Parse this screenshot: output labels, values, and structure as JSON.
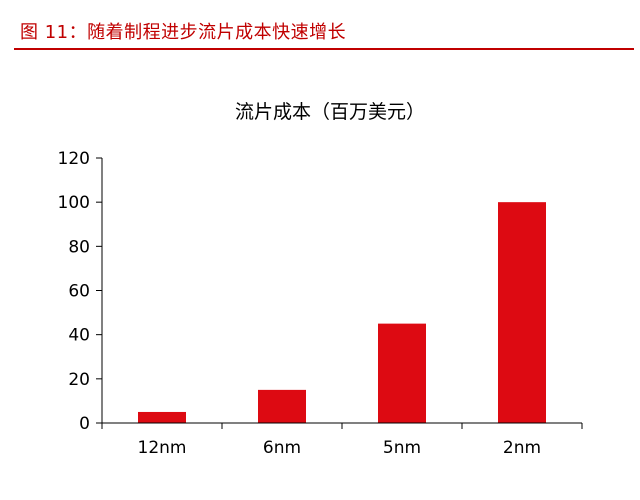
{
  "figure": {
    "caption": "图 11：随着制程进步流片成本快速增长"
  },
  "colors": {
    "accent": "#c00000",
    "bar": "#dd0a12",
    "axis": "#000000"
  },
  "chart_data": {
    "type": "bar",
    "title": "流片成本（百万美元）",
    "categories": [
      "12nm",
      "6nm",
      "5nm",
      "2nm"
    ],
    "values": [
      5,
      15,
      45,
      100
    ],
    "ylim": [
      0,
      120
    ],
    "yticks": [
      0,
      20,
      40,
      60,
      80,
      100,
      120
    ],
    "xlabel": "",
    "ylabel": "",
    "grid": false,
    "legend": "none"
  }
}
